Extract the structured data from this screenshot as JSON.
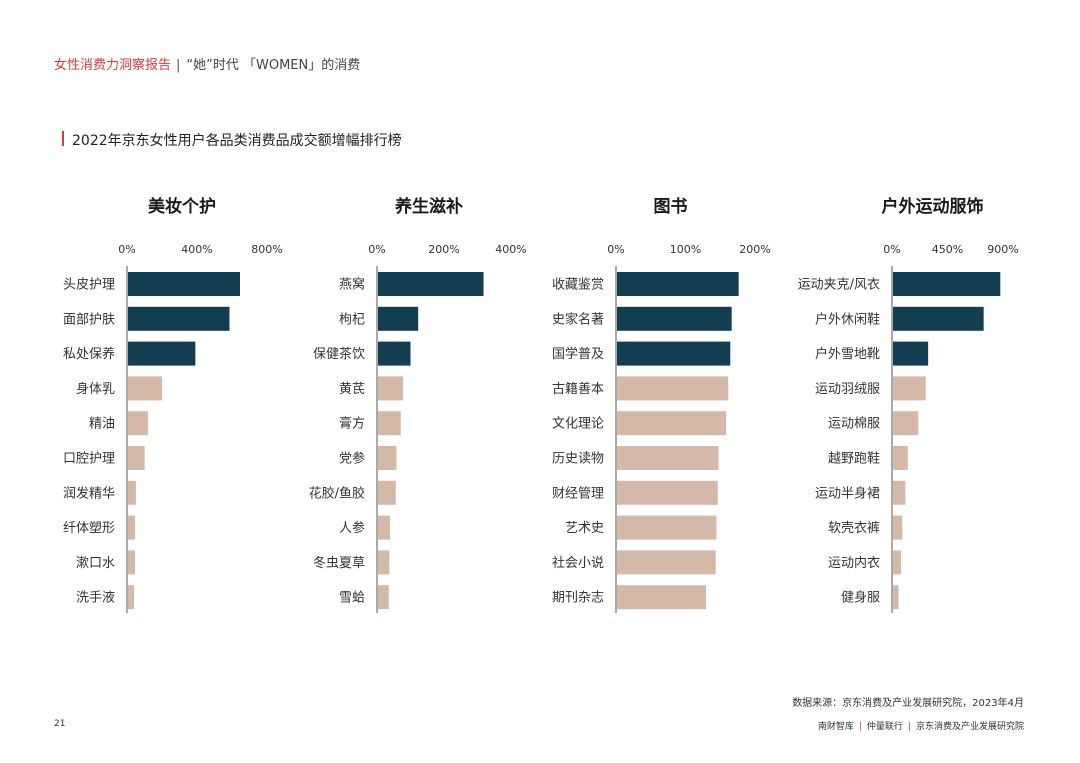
{
  "header": {
    "report": "女性消费力洞察报告",
    "separator": "|",
    "subtitle": "“她”时代 「WOMEN」的消费"
  },
  "section": {
    "title": "2022年京东女性用户各品类消费品成交额增幅排行榜"
  },
  "colors": {
    "top": "#133e52",
    "rest": "#d4b9a8",
    "accent": "#d9393f"
  },
  "chart_data": [
    {
      "type": "bar",
      "orientation": "horizontal",
      "title": "美妆个护",
      "ticks": [
        "0%",
        "400%",
        "800%"
      ],
      "xlim": [
        0,
        800
      ],
      "categories": [
        "头皮护理",
        "面部护肤",
        "私处保养",
        "身体乳",
        "精油",
        "口腔护理",
        "润发精华",
        "纤体塑形",
        "漱口水",
        "洗手液"
      ],
      "values": [
        640,
        580,
        385,
        195,
        115,
        95,
        45,
        40,
        40,
        35
      ]
    },
    {
      "type": "bar",
      "orientation": "horizontal",
      "title": "养生滋补",
      "ticks": [
        "0%",
        "200%",
        "400%"
      ],
      "xlim": [
        0,
        400
      ],
      "categories": [
        "燕窝",
        "枸杞",
        "保健茶饮",
        "黄芪",
        "膏方",
        "党参",
        "花胶/鱼胶",
        "人参",
        "冬虫夏草",
        "雪蛤"
      ],
      "values": [
        315,
        120,
        97,
        75,
        68,
        55,
        53,
        36,
        34,
        32
      ]
    },
    {
      "type": "bar",
      "orientation": "horizontal",
      "title": "图书",
      "ticks": [
        "0%",
        "100%",
        "200%"
      ],
      "xlim": [
        0,
        200
      ],
      "categories": [
        "收藏鉴赏",
        "史家名著",
        "国学普及",
        "古籍善本",
        "文化理论",
        "历史读物",
        "财经管理",
        "艺术史",
        "社会小说",
        "期刊杂志"
      ],
      "values": [
        175,
        165,
        163,
        160,
        157,
        146,
        145,
        143,
        142,
        128
      ]
    },
    {
      "type": "bar",
      "orientation": "horizontal",
      "title": "户外运动服饰",
      "ticks": [
        "0%",
        "450%",
        "900%"
      ],
      "xlim": [
        0,
        900
      ],
      "categories": [
        "运动夹克/风衣",
        "户外休闲鞋",
        "户外雪地靴",
        "运动羽绒服",
        "运动棉服",
        "越野跑鞋",
        "运动半身裙",
        "软壳衣裤",
        "运动内衣",
        "健身服"
      ],
      "values": [
        870,
        735,
        285,
        265,
        205,
        120,
        100,
        75,
        65,
        45
      ]
    }
  ],
  "source": "数据来源：京东消费及产业发展研究院，2023年4月",
  "page_number": "21",
  "footer": {
    "brand1": "南财智库",
    "brand2": "仲量联行",
    "brand3": "京东消费及产业发展研究院"
  }
}
